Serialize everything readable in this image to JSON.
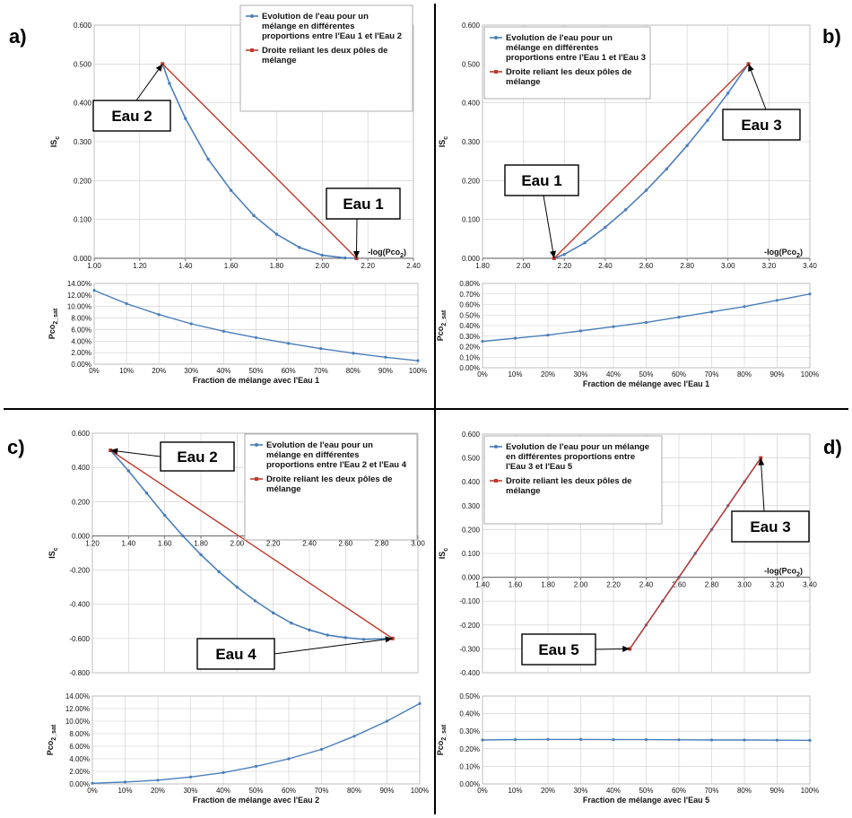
{
  "chart_data": [
    {
      "panel": "a)",
      "type": "line",
      "main": {
        "xlabel": "-log(Pco",
        "xlabel_sub": "2",
        "xlabel_end": ")",
        "ylabel": "IS",
        "ylabel_sub": "c",
        "xlim": [
          1.0,
          2.4
        ],
        "ylim": [
          0.0,
          0.6
        ],
        "x_ticks": [
          "1.00",
          "1.20",
          "1.40",
          "1.60",
          "1.80",
          "2.00",
          "2.20",
          "2.40"
        ],
        "y_ticks": [
          "0.000",
          "0.100",
          "0.200",
          "0.300",
          "0.400",
          "0.500",
          "0.600"
        ],
        "legend": [
          "Evolution de l'eau pour un",
          "mélange en différentes",
          "proportions entre l'Eau 1 et l'Eau 2",
          "Droite reliant les deux pôles de",
          "mélange"
        ],
        "series": [
          {
            "name": "Evolution de l'eau pour un mélange en différentes proportions entre l'Eau 1 et l'Eau 2",
            "color": "#4a7ebb",
            "x": [
              1.3,
              1.33,
              1.4,
              1.5,
              1.6,
              1.7,
              1.8,
              1.9,
              2.0,
              2.1,
              2.15
            ],
            "y": [
              0.5,
              0.45,
              0.36,
              0.255,
              0.175,
              0.11,
              0.062,
              0.028,
              0.008,
              0.001,
              0.0
            ]
          },
          {
            "name": "Droite reliant les deux pôles de mélange",
            "color": "#c0392b",
            "x": [
              1.3,
              2.15
            ],
            "y": [
              0.5,
              0.0
            ]
          }
        ],
        "callouts": [
          {
            "label": "Eau 2",
            "x": 1.3,
            "y": 0.5
          },
          {
            "label": "Eau 1",
            "x": 2.15,
            "y": 0.0
          }
        ]
      },
      "sub": {
        "xlabel": "Fraction de mélange avec l'Eau 1",
        "ylabel": "Pco",
        "ylabel_sub": "2_sat",
        "x_ticks": [
          "0%",
          "10%",
          "20%",
          "30%",
          "40%",
          "50%",
          "60%",
          "70%",
          "80%",
          "90%",
          "100%"
        ],
        "y_ticks": [
          "0.00%",
          "2.00%",
          "4.00%",
          "6.00%",
          "8.00%",
          "10.00%",
          "12.00%",
          "14.00%"
        ],
        "ylim": [
          0,
          14
        ],
        "series": [
          {
            "x": [
              0,
              10,
              20,
              30,
              40,
              50,
              60,
              70,
              80,
              90,
              100
            ],
            "y": [
              12.8,
              10.5,
              8.6,
              7.0,
              5.7,
              4.6,
              3.6,
              2.7,
              1.9,
              1.2,
              0.6
            ]
          }
        ]
      }
    },
    {
      "panel": "b)",
      "type": "line",
      "main": {
        "xlabel": "-log(Pco",
        "xlabel_sub": "2",
        "xlabel_end": ")",
        "ylabel": "IS",
        "ylabel_sub": "c",
        "xlim": [
          1.8,
          3.4
        ],
        "ylim": [
          0.0,
          0.6
        ],
        "x_ticks": [
          "1.80",
          "2.00",
          "2.20",
          "2.40",
          "2.60",
          "2.80",
          "3.00",
          "3.20",
          "3.40"
        ],
        "y_ticks": [
          "0.000",
          "0.100",
          "0.200",
          "0.300",
          "0.400",
          "0.500",
          "0.600"
        ],
        "legend": [
          "Evolution de l'eau pour un",
          "mélange en différentes",
          "proportions entre l'Eau 1 et l'Eau 3",
          "Droite reliant les deux pôles de",
          "mélange"
        ],
        "series": [
          {
            "name": "Evolution de l'eau pour un mélange en différentes proportions entre l'Eau 1 et l'Eau 3",
            "color": "#4a7ebb",
            "x": [
              2.15,
              2.2,
              2.3,
              2.4,
              2.5,
              2.6,
              2.7,
              2.8,
              2.9,
              3.0,
              3.1
            ],
            "y": [
              0.0,
              0.01,
              0.04,
              0.08,
              0.125,
              0.175,
              0.23,
              0.29,
              0.355,
              0.425,
              0.5
            ]
          },
          {
            "name": "Droite reliant les deux pôles de mélange",
            "color": "#c0392b",
            "x": [
              2.15,
              3.1
            ],
            "y": [
              0.0,
              0.5
            ]
          }
        ],
        "callouts": [
          {
            "label": "Eau 1",
            "x": 2.15,
            "y": 0.0
          },
          {
            "label": "Eau 3",
            "x": 3.1,
            "y": 0.5
          }
        ]
      },
      "sub": {
        "xlabel": "Fraction de mélange avec l'Eau 1",
        "ylabel": "Pco",
        "ylabel_sub": "2_sat",
        "x_ticks": [
          "0%",
          "10%",
          "20%",
          "30%",
          "40%",
          "50%",
          "60%",
          "70%",
          "80%",
          "90%",
          "100%"
        ],
        "y_ticks": [
          "0.00%",
          "0.10%",
          "0.20%",
          "0.30%",
          "0.40%",
          "0.50%",
          "0.60%",
          "0.70%",
          "0.80%"
        ],
        "ylim": [
          0,
          0.8
        ],
        "series": [
          {
            "x": [
              0,
              10,
              20,
              30,
              40,
              50,
              60,
              70,
              80,
              90,
              100
            ],
            "y": [
              0.25,
              0.28,
              0.31,
              0.35,
              0.39,
              0.43,
              0.48,
              0.53,
              0.58,
              0.64,
              0.7
            ]
          }
        ]
      }
    },
    {
      "panel": "c)",
      "type": "line",
      "main": {
        "xlabel": "-log(Pco",
        "xlabel_sub": "2",
        "xlabel_end": ")",
        "ylabel": "IS",
        "ylabel_sub": "c",
        "xlim": [
          1.2,
          3.0
        ],
        "ylim": [
          -0.8,
          0.6
        ],
        "x_ticks": [
          "1.20",
          "1.40",
          "1.60",
          "1.80",
          "2.00",
          "2.20",
          "2.40",
          "2.60",
          "2.80",
          "3.00"
        ],
        "y_ticks": [
          "-0.800",
          "-0.600",
          "-0.400",
          "-0.200",
          "0.000",
          "0.200",
          "0.400",
          "0.600"
        ],
        "legend": [
          "Evolution de l'eau pour un",
          "mélange en différentes",
          "proportions entre l'Eau 2 et l'Eau 4",
          "Droite reliant les deux pôles de",
          "mélange"
        ],
        "series": [
          {
            "name": "Evolution de l'eau pour un mélange en différentes proportions entre l'Eau 2 et l'Eau 4",
            "color": "#4a7ebb",
            "x": [
              1.3,
              1.4,
              1.5,
              1.6,
              1.7,
              1.8,
              1.9,
              2.0,
              2.1,
              2.2,
              2.3,
              2.4,
              2.5,
              2.6,
              2.7,
              2.86
            ],
            "y": [
              0.5,
              0.38,
              0.25,
              0.12,
              0.0,
              -0.11,
              -0.21,
              -0.3,
              -0.38,
              -0.45,
              -0.51,
              -0.55,
              -0.58,
              -0.595,
              -0.605,
              -0.6
            ]
          },
          {
            "name": "Droite reliant les deux pôles de mélange",
            "color": "#c0392b",
            "x": [
              1.3,
              2.86
            ],
            "y": [
              0.5,
              -0.6
            ]
          }
        ],
        "callouts": [
          {
            "label": "Eau 2",
            "x": 1.3,
            "y": 0.5
          },
          {
            "label": "Eau 4",
            "x": 2.86,
            "y": -0.6
          }
        ]
      },
      "sub": {
        "xlabel": "Fraction de mélange avec l'Eau 2",
        "ylabel": "Pco",
        "ylabel_sub": "2_sat",
        "x_ticks": [
          "0%",
          "10%",
          "20%",
          "30%",
          "40%",
          "50%",
          "60%",
          "70%",
          "80%",
          "90%",
          "100%"
        ],
        "y_ticks": [
          "0.00%",
          "2.00%",
          "4.00%",
          "6.00%",
          "8.00%",
          "10.00%",
          "12.00%",
          "14.00%"
        ],
        "ylim": [
          0,
          14
        ],
        "series": [
          {
            "x": [
              0,
              10,
              20,
              30,
              40,
              50,
              60,
              70,
              80,
              90,
              100
            ],
            "y": [
              0.1,
              0.3,
              0.6,
              1.1,
              1.8,
              2.8,
              4.0,
              5.5,
              7.6,
              10.0,
              12.8
            ]
          }
        ]
      }
    },
    {
      "panel": "d)",
      "type": "line",
      "main": {
        "xlabel": "-log(Pco",
        "xlabel_sub": "2",
        "xlabel_end": ")",
        "ylabel": "IS",
        "ylabel_sub": "c",
        "xlim": [
          1.4,
          3.4
        ],
        "ylim": [
          -0.4,
          0.6
        ],
        "x_ticks": [
          "1.40",
          "1.60",
          "1.80",
          "2.00",
          "2.20",
          "2.40",
          "2.60",
          "2.80",
          "3.00",
          "3.20",
          "3.40"
        ],
        "y_ticks": [
          "-0.400",
          "-0.300",
          "-0.200",
          "-0.100",
          "0.000",
          "0.100",
          "0.200",
          "0.300",
          "0.400",
          "0.500",
          "0.600"
        ],
        "legend": [
          "Evolution de l'eau pour un mélange",
          "en différentes proportions entre",
          "l'Eau 3 et l'Eau 5",
          "Droite reliant les deux pôles de",
          "mélange"
        ],
        "series": [
          {
            "name": "Evolution de l'eau pour un mélange en différentes proportions entre l'Eau 3 et l'Eau 5",
            "color": "#4a7ebb",
            "x": [
              2.3,
              2.4,
              2.5,
              2.6,
              2.7,
              2.8,
              2.9,
              3.0,
              3.1
            ],
            "y": [
              -0.3,
              -0.2,
              -0.1,
              0.0,
              0.1,
              0.2,
              0.3,
              0.4,
              0.5
            ]
          },
          {
            "name": "Droite reliant les deux pôles de mélange",
            "color": "#c0392b",
            "x": [
              2.3,
              3.1
            ],
            "y": [
              -0.3,
              0.5
            ]
          }
        ],
        "callouts": [
          {
            "label": "Eau 3",
            "x": 3.1,
            "y": 0.5
          },
          {
            "label": "Eau 5",
            "x": 2.3,
            "y": -0.3
          }
        ]
      },
      "sub": {
        "xlabel": "Fraction de mélange avec l'Eau 5",
        "ylabel": "Pco",
        "ylabel_sub": "2_sat",
        "x_ticks": [
          "0%",
          "10%",
          "20%",
          "30%",
          "40%",
          "50%",
          "60%",
          "70%",
          "80%",
          "90%",
          "100%"
        ],
        "y_ticks": [
          "0.00%",
          "0.10%",
          "0.20%",
          "0.30%",
          "0.40%",
          "0.50%"
        ],
        "ylim": [
          0,
          0.5
        ],
        "series": [
          {
            "x": [
              0,
              10,
              20,
              30,
              40,
              50,
              60,
              70,
              80,
              90,
              100
            ],
            "y": [
              0.25,
              0.252,
              0.253,
              0.253,
              0.252,
              0.252,
              0.251,
              0.25,
              0.25,
              0.249,
              0.248
            ]
          }
        ]
      }
    }
  ]
}
